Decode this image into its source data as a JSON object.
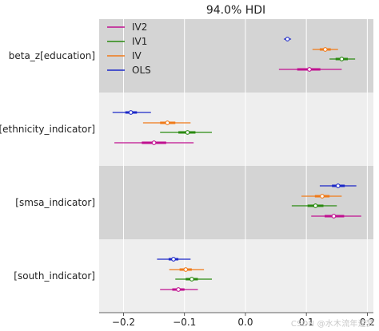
{
  "watermark": "CSDN @水木流年追梦",
  "chart_data": {
    "type": "forest",
    "title": "94.0% HDI",
    "xlabel": "",
    "ylabel": "",
    "xlim": [
      -0.24,
      0.21
    ],
    "x_ticks": [
      -0.2,
      -0.1,
      0.0,
      0.1,
      0.2
    ],
    "x_tick_labels": [
      "−0.2",
      "−0.1",
      "0.0",
      "0.1",
      "0.2"
    ],
    "grid": "vertical",
    "legend_position": "top-left",
    "row_band_colors": [
      "#d4d4d4",
      "#eeeeee"
    ],
    "series": [
      {
        "name": "IV2",
        "color": "#c01090"
      },
      {
        "name": "IV1",
        "color": "#2a8a10"
      },
      {
        "name": "IV",
        "color": "#f07a18"
      },
      {
        "name": "OLS",
        "color": "#1c28c8"
      }
    ],
    "rows": [
      {
        "label": "beta_z[education]",
        "estimates": [
          {
            "model": "OLS",
            "mean": 0.069,
            "iqr": [
              0.066,
              0.072
            ],
            "hdi": [
              0.063,
              0.075
            ]
          },
          {
            "model": "IV",
            "mean": 0.131,
            "iqr": [
              0.122,
              0.14
            ],
            "hdi": [
              0.11,
              0.152
            ]
          },
          {
            "model": "IV1",
            "mean": 0.158,
            "iqr": [
              0.148,
              0.168
            ],
            "hdi": [
              0.138,
              0.18
            ]
          },
          {
            "model": "IV2",
            "mean": 0.105,
            "iqr": [
              0.085,
              0.123
            ],
            "hdi": [
              0.055,
              0.158
            ]
          }
        ]
      },
      {
        "label": "[ethnicity_indicator]",
        "estimates": [
          {
            "model": "OLS",
            "mean": -0.188,
            "iqr": [
              -0.197,
              -0.178
            ],
            "hdi": [
              -0.218,
              -0.155
            ]
          },
          {
            "model": "IV",
            "mean": -0.128,
            "iqr": [
              -0.14,
              -0.115
            ],
            "hdi": [
              -0.168,
              -0.09
            ]
          },
          {
            "model": "IV1",
            "mean": -0.095,
            "iqr": [
              -0.11,
              -0.082
            ],
            "hdi": [
              -0.14,
              -0.055
            ]
          },
          {
            "model": "IV2",
            "mean": -0.15,
            "iqr": [
              -0.17,
              -0.13
            ],
            "hdi": [
              -0.215,
              -0.085
            ]
          }
        ]
      },
      {
        "label": "[smsa_indicator]",
        "estimates": [
          {
            "model": "OLS",
            "mean": 0.152,
            "iqr": [
              0.142,
              0.163
            ],
            "hdi": [
              0.122,
              0.182
            ]
          },
          {
            "model": "IV",
            "mean": 0.126,
            "iqr": [
              0.114,
              0.138
            ],
            "hdi": [
              0.092,
              0.158
            ]
          },
          {
            "model": "IV1",
            "mean": 0.115,
            "iqr": [
              0.102,
              0.128
            ],
            "hdi": [
              0.076,
              0.15
            ]
          },
          {
            "model": "IV2",
            "mean": 0.145,
            "iqr": [
              0.13,
              0.162
            ],
            "hdi": [
              0.108,
              0.19
            ]
          }
        ]
      },
      {
        "label": "[south_indicator]",
        "estimates": [
          {
            "model": "OLS",
            "mean": -0.118,
            "iqr": [
              -0.126,
              -0.11
            ],
            "hdi": [
              -0.145,
              -0.09
            ]
          },
          {
            "model": "IV",
            "mean": -0.098,
            "iqr": [
              -0.108,
              -0.088
            ],
            "hdi": [
              -0.125,
              -0.068
            ]
          },
          {
            "model": "IV1",
            "mean": -0.088,
            "iqr": [
              -0.098,
              -0.078
            ],
            "hdi": [
              -0.115,
              -0.055
            ]
          },
          {
            "model": "IV2",
            "mean": -0.11,
            "iqr": [
              -0.12,
              -0.1
            ],
            "hdi": [
              -0.14,
              -0.078
            ]
          }
        ]
      }
    ]
  }
}
